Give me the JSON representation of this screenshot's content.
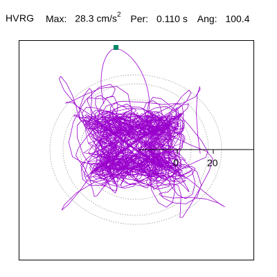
{
  "header": {
    "station": "HVRG",
    "max_label": "Max:",
    "max_value": "28.3 cm/s",
    "max_unit_sup": "2",
    "per_label": "Per:",
    "per_value": "0.110 s",
    "ang_label": "Ang:",
    "ang_value": "100.4"
  },
  "axis": {
    "tick_labels": [
      "0",
      "20"
    ]
  },
  "colors": {
    "trace": "#9900cc",
    "marker": "#008866",
    "circle": "#888888"
  }
}
